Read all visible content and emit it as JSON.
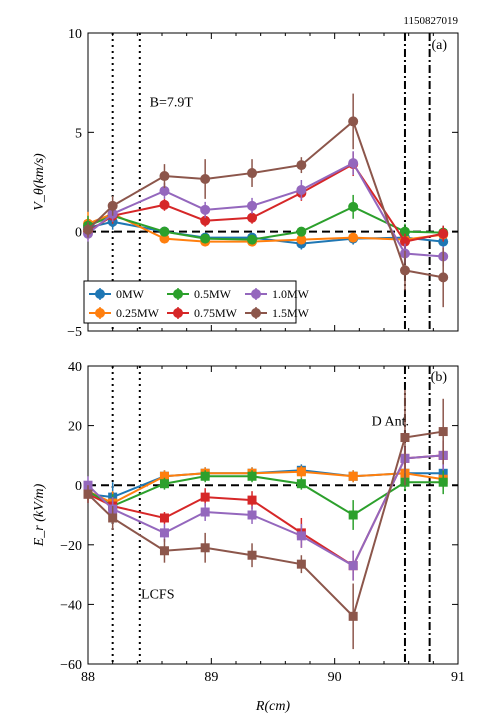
{
  "figure_id": "1150827019",
  "chart_data": [
    {
      "type": "line",
      "panel_label": "(a)",
      "ylabel": "V_θ(km/s)",
      "xlabel": "",
      "xlim": [
        88,
        91
      ],
      "ylim": [
        -5,
        10
      ],
      "xticks": [
        88,
        89,
        90,
        91
      ],
      "yticks": [
        -5,
        0,
        5,
        10
      ],
      "ytick_labels": [
        "−5",
        "0",
        "5",
        "10"
      ],
      "x": [
        88.0,
        88.2,
        88.62,
        88.95,
        89.33,
        89.73,
        90.15,
        90.57,
        90.88
      ],
      "annotations": [
        {
          "text": "B=7.9T",
          "x": 88.5,
          "y": 6.3
        }
      ],
      "vlines": [
        {
          "x": 88.2,
          "style": "dotted"
        },
        {
          "x": 88.42,
          "style": "dotted"
        },
        {
          "x": 90.57,
          "style": "dashdot"
        },
        {
          "x": 90.77,
          "style": "dashdot"
        }
      ],
      "hline": 0,
      "series": [
        {
          "name": "0MW",
          "color": "#1f77b4",
          "marker": "circle",
          "values": [
            0.2,
            0.5,
            0.0,
            -0.3,
            -0.3,
            -0.6,
            -0.35,
            -0.3,
            -0.5
          ],
          "errors": [
            0.5,
            0.4,
            0.2,
            0.2,
            0.2,
            0.3,
            0.3,
            0.4,
            0.8
          ]
        },
        {
          "name": "0.25MW",
          "color": "#ff7f0e",
          "marker": "circle",
          "values": [
            0.4,
            0.9,
            -0.35,
            -0.5,
            -0.5,
            -0.4,
            -0.3,
            -0.4,
            -0.15
          ],
          "errors": [
            0.6,
            0.4,
            0.2,
            0.2,
            0.2,
            0.2,
            0.2,
            0.3,
            0.3
          ]
        },
        {
          "name": "0.5MW",
          "color": "#2ca02c",
          "marker": "circle",
          "values": [
            0.3,
            0.8,
            0.0,
            -0.35,
            -0.4,
            0.0,
            1.25,
            0.0,
            -0.05
          ],
          "errors": [
            0.5,
            0.4,
            0.2,
            0.2,
            0.2,
            0.2,
            0.6,
            0.4,
            0.3
          ]
        },
        {
          "name": "0.75MW",
          "color": "#d62728",
          "marker": "circle",
          "values": [
            0.0,
            0.8,
            1.35,
            0.55,
            0.7,
            1.95,
            3.4,
            -0.5,
            -0.1
          ],
          "errors": [
            0.4,
            0.4,
            0.3,
            0.3,
            0.3,
            0.4,
            0.6,
            0.4,
            0.4
          ]
        },
        {
          "name": "1.0MW",
          "color": "#9467bd",
          "marker": "circle",
          "values": [
            -0.1,
            0.9,
            2.05,
            1.1,
            1.3,
            2.1,
            3.45,
            -1.1,
            -1.25
          ],
          "errors": [
            0.4,
            0.4,
            0.4,
            0.4,
            0.4,
            0.5,
            0.6,
            0.5,
            0.5
          ]
        },
        {
          "name": "1.5MW",
          "color": "#8c564b",
          "marker": "circle",
          "values": [
            0.1,
            1.3,
            2.8,
            2.65,
            2.95,
            3.35,
            5.55,
            -1.95,
            -2.3
          ],
          "errors": [
            0.4,
            0.5,
            0.6,
            1.0,
            0.7,
            0.4,
            1.4,
            1.0,
            1.5
          ]
        }
      ],
      "legend": {
        "placement": "bottom-left",
        "ncol": 3
      }
    },
    {
      "type": "line",
      "panel_label": "(b)",
      "ylabel": "E_r (kV/m)",
      "xlabel": "R(cm)",
      "xlim": [
        88,
        91
      ],
      "ylim": [
        -60,
        40
      ],
      "xticks": [
        88,
        89,
        90,
        91
      ],
      "yticks": [
        -60,
        -40,
        -20,
        0,
        20,
        40
      ],
      "ytick_labels": [
        "−60",
        "−40",
        "−20",
        "0",
        "20",
        "40"
      ],
      "x": [
        88.0,
        88.2,
        88.62,
        88.95,
        89.33,
        89.73,
        90.15,
        90.57,
        90.88
      ],
      "annotations": [
        {
          "text": "D Ant.",
          "x": 90.3,
          "y": 20
        },
        {
          "text": "LCFS",
          "x": 88.43,
          "y": -38
        }
      ],
      "vlines": [
        {
          "x": 88.2,
          "style": "dotted"
        },
        {
          "x": 88.42,
          "style": "dotted"
        },
        {
          "x": 90.57,
          "style": "dashdot"
        },
        {
          "x": 90.77,
          "style": "dashdot"
        }
      ],
      "hline": 0,
      "series": [
        {
          "name": "0MW",
          "color": "#1f77b4",
          "marker": "square",
          "values": [
            -3,
            -4,
            3,
            4,
            4,
            5,
            3,
            4,
            4
          ],
          "errors": [
            3,
            5,
            2,
            2,
            2,
            2,
            2,
            3,
            4
          ]
        },
        {
          "name": "0.25MW",
          "color": "#ff7f0e",
          "marker": "square",
          "values": [
            -2,
            -6,
            3,
            4,
            4,
            4.5,
            3,
            4,
            2
          ],
          "errors": [
            3,
            4,
            2,
            2,
            2,
            2,
            2,
            3,
            3
          ]
        },
        {
          "name": "0.5MW",
          "color": "#2ca02c",
          "marker": "square",
          "values": [
            -2,
            -7,
            0.5,
            3,
            3,
            0.5,
            -10,
            1,
            1
          ],
          "errors": [
            3,
            4,
            2,
            2,
            2,
            2,
            5,
            3,
            4
          ]
        },
        {
          "name": "0.75MW",
          "color": "#d62728",
          "marker": "square",
          "values": [
            -3,
            -7,
            -11,
            -4,
            -5,
            -16,
            -27,
            9,
            10
          ],
          "errors": [
            3,
            3,
            2,
            3,
            3,
            5,
            5,
            4,
            5
          ]
        },
        {
          "name": "1.0MW",
          "color": "#9467bd",
          "marker": "square",
          "values": [
            0,
            -8,
            -16,
            -9,
            -10,
            -17,
            -27,
            9,
            10
          ],
          "errors": [
            3,
            4,
            3,
            3,
            3,
            4,
            5,
            4,
            5
          ]
        },
        {
          "name": "1.5MW",
          "color": "#8c564b",
          "marker": "square",
          "values": [
            -3,
            -11,
            -22,
            -21,
            -23.5,
            -26.5,
            -44,
            16,
            18
          ],
          "errors": [
            3,
            4,
            4,
            5,
            4,
            3,
            11,
            16,
            11
          ]
        }
      ]
    }
  ]
}
